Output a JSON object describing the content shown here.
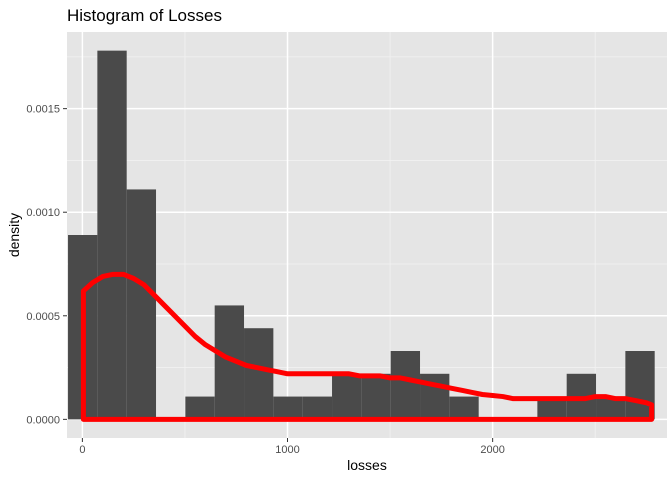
{
  "chart_data": {
    "type": "bar",
    "title": "Histogram of Losses",
    "xlabel": "losses",
    "ylabel": "density",
    "xlim": [
      -75,
      2850
    ],
    "ylim": [
      -9e-05,
      0.00187
    ],
    "x_ticks": [
      0,
      1000,
      2000
    ],
    "x_tick_labels": [
      "0",
      "1000",
      "2000"
    ],
    "y_ticks": [
      0,
      0.0005,
      0.001,
      0.0015
    ],
    "y_tick_labels": [
      "0.0000",
      "0.0005",
      "0.0010",
      "0.0015"
    ],
    "bin_width": 143,
    "bins": [
      {
        "x0": -70,
        "x1": 73,
        "density": 0.00089
      },
      {
        "x0": 73,
        "x1": 216,
        "density": 0.00178
      },
      {
        "x0": 216,
        "x1": 359,
        "density": 0.00111
      },
      {
        "x0": 359,
        "x1": 502,
        "density": 0.0
      },
      {
        "x0": 502,
        "x1": 645,
        "density": 0.00011
      },
      {
        "x0": 645,
        "x1": 788,
        "density": 0.00055
      },
      {
        "x0": 788,
        "x1": 931,
        "density": 0.00044
      },
      {
        "x0": 931,
        "x1": 1074,
        "density": 0.00011
      },
      {
        "x0": 1074,
        "x1": 1217,
        "density": 0.00011
      },
      {
        "x0": 1217,
        "x1": 1360,
        "density": 0.00022
      },
      {
        "x0": 1360,
        "x1": 1503,
        "density": 0.00022
      },
      {
        "x0": 1503,
        "x1": 1646,
        "density": 0.00033
      },
      {
        "x0": 1646,
        "x1": 1789,
        "density": 0.00022
      },
      {
        "x0": 1789,
        "x1": 1932,
        "density": 0.00011
      },
      {
        "x0": 1932,
        "x1": 2075,
        "density": 0.0
      },
      {
        "x0": 2075,
        "x1": 2218,
        "density": 0.0
      },
      {
        "x0": 2218,
        "x1": 2361,
        "density": 0.00011
      },
      {
        "x0": 2361,
        "x1": 2504,
        "density": 0.00022
      },
      {
        "x0": 2504,
        "x1": 2647,
        "density": 0.00011
      },
      {
        "x0": 2647,
        "x1": 2790,
        "density": 0.00033
      }
    ],
    "density_curve": {
      "x": [
        5,
        50,
        100,
        150,
        200,
        250,
        300,
        350,
        400,
        450,
        500,
        550,
        600,
        650,
        700,
        750,
        800,
        850,
        900,
        950,
        1000,
        1050,
        1100,
        1150,
        1200,
        1250,
        1300,
        1350,
        1400,
        1450,
        1500,
        1550,
        1600,
        1650,
        1700,
        1750,
        1800,
        1850,
        1900,
        1950,
        2000,
        2050,
        2100,
        2150,
        2200,
        2250,
        2300,
        2350,
        2400,
        2450,
        2500,
        2550,
        2600,
        2650,
        2700,
        2750,
        2775
      ],
      "y": [
        0.00062,
        0.00066,
        0.00069,
        0.0007,
        0.0007,
        0.00068,
        0.00065,
        0.0006,
        0.00055,
        0.0005,
        0.00045,
        0.0004,
        0.00036,
        0.00033,
        0.0003,
        0.00028,
        0.00026,
        0.00025,
        0.00024,
        0.00023,
        0.00022,
        0.00022,
        0.00022,
        0.00022,
        0.00022,
        0.00022,
        0.00022,
        0.00021,
        0.00021,
        0.00021,
        0.0002,
        0.0002,
        0.00019,
        0.00018,
        0.00017,
        0.00016,
        0.00015,
        0.00014,
        0.00013,
        0.00012,
        0.000115,
        0.00011,
        0.0001,
        0.0001,
        0.0001,
        0.0001,
        0.0001,
        0.0001,
        0.0001,
        0.0001,
        0.00011,
        0.00011,
        0.0001,
        0.0001,
        9e-05,
        8e-05,
        7e-05
      ],
      "color": "#ff0000"
    },
    "colors": {
      "bar_fill": "#4a4a4a",
      "panel_background": "#e5e5e5",
      "grid_major": "#ffffff",
      "curve": "#ff0000"
    },
    "grid": true,
    "legend": "none"
  }
}
